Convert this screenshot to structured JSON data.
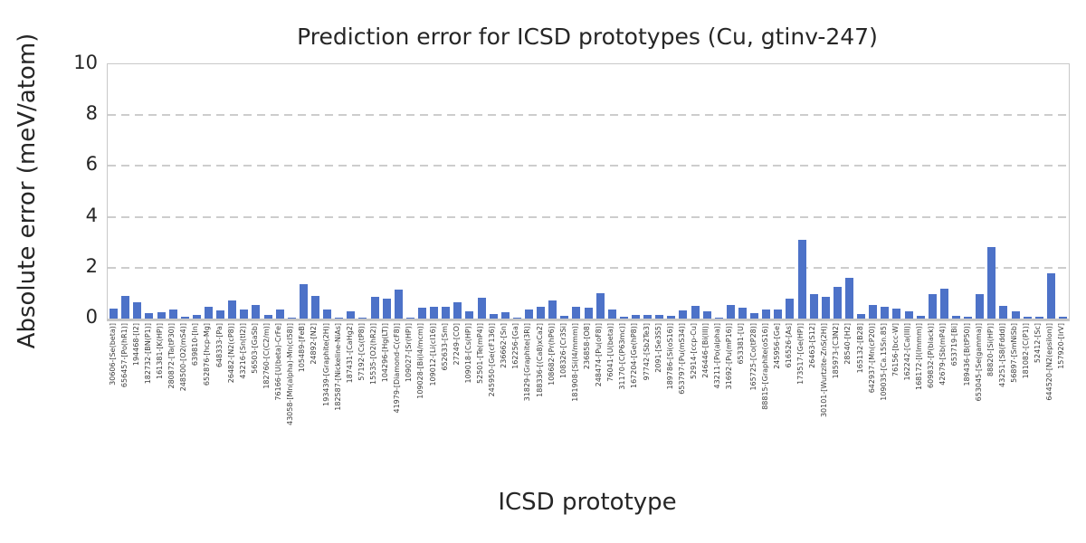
{
  "title": "Prediction error for ICSD prototypes (Cu, gtinv-247)",
  "colors": {
    "bar": "#4d72c8",
    "grid": "#cdcdcd",
    "spine": "#c9c9c9",
    "text": "#262626",
    "tick_text": "#3c3c3c"
  },
  "chart_data": {
    "type": "bar",
    "title": "Prediction error for ICSD prototypes (Cu, gtinv-247)",
    "xlabel": "ICSD prototype",
    "ylabel": "Absolute error (meV/atom)",
    "ylim": [
      0,
      10
    ],
    "yticks": [
      0,
      2,
      4,
      6,
      8,
      10
    ],
    "grid": "horizontal-dashed",
    "legend": "none",
    "bar_color": "#4d72c8",
    "categories": [
      "30606-[Se(beta)]",
      "656457-[Po(hR1)]",
      "194468-[I2]",
      "182732-[BN(P1)]",
      "161381-[K(HP)]",
      "280872-[Ta(tP30)]",
      "248500-[O2(mS4)]",
      "639810-[In]",
      "652876-[hcp-Mg]",
      "648333-[Pa]",
      "26482-[N2(cP8)]",
      "43216-[Sn(tI2)]",
      "56503-[GaSb]",
      "182760-[C(C2/m)]",
      "76166-[U(beta)-CrFe]",
      "43058-[Mn(alpha)-Mn(cI58)]",
      "105489-[FeB]",
      "24892-[N2]",
      "193439-[Graphite(2H)]",
      "182587-[Nickeline-NiAs]",
      "187431-[CaHg2]",
      "57192-[Cs(tP8)]",
      "15535-[O2(hR2)]",
      "104296-[Hg(LT)]",
      "41979-[Diamond-C(cF8)]",
      "109027-[Sr(HP)]",
      "109028-[Bi(I4/mcm)]",
      "109012-[Li(cI16)]",
      "652633-[Sm]",
      "27249-[CO]",
      "109018-[Cs(HP)]",
      "52501-[Te(mP4)]",
      "245950-[Ge(cF136)]",
      "236662-[Sn]",
      "162256-[Ga]",
      "31829-[Graphite(3R)]",
      "188336-[(Ca8)xCa2]",
      "108682-[Pr(hP6)]",
      "108326-[Cr3Si]",
      "181908-[Si(I4/mmm)]",
      "236858-[O8]",
      "248474-[Pu(oF8)]",
      "76041-[U(beta)]",
      "31170-[C(P63mc)]",
      "167204-[Ge(hP8)]",
      "97742-[Sb2Te3]",
      "2091-[Se3S5]",
      "189786-[Si(oS16)]",
      "653797-[Pu(mS34)]",
      "52914-[ccp-Cu]",
      "246446-[Bi(III)]",
      "43211-[Po(alpha)]",
      "31692-[Pu(mP16)]",
      "653381-[U]",
      "165725-[Co(tP28)]",
      "88815-[Graphite(oS16)]",
      "245956-[Ge]",
      "616526-[As]",
      "173517-[Ge(HP)]",
      "26463-[S12]",
      "30101-[Wurtzite-ZnS(2H)]",
      "185973-[C3N2]",
      "28540-[H2]",
      "165132-[B28]",
      "642937-[Mn(cP20)]",
      "109035-[Ca.15Sn.85]",
      "76156-[bcc-W]",
      "162242-[Ca(III)]",
      "168172-[I(Immm)]",
      "609832-[P(black)]",
      "42679-[Sb(mP4)]",
      "653719-[Bi]",
      "189436-[B(tP50)]",
      "653045-[Se(gamma)]",
      "88820-[Si(HP)]",
      "43251-[S8(Fddd)]",
      "56897-[SmNiSb]",
      "181082-[C(P1)]",
      "52412-[Sc]",
      "644520-[N2(epsilon)]",
      "157920-[IrV]"
    ],
    "values": [
      0.4,
      0.88,
      0.64,
      0.22,
      0.24,
      0.35,
      0.06,
      0.14,
      0.47,
      0.31,
      0.72,
      0.37,
      0.52,
      0.16,
      0.36,
      0.03,
      1.35,
      0.9,
      0.34,
      0.03,
      0.27,
      0.05,
      0.87,
      0.8,
      1.15,
      0.03,
      0.42,
      0.47,
      0.47,
      0.64,
      0.3,
      0.82,
      0.18,
      0.24,
      0.03,
      0.36,
      0.47,
      0.7,
      0.1,
      0.46,
      0.42,
      1.0,
      0.37,
      0.08,
      0.14,
      0.14,
      0.14,
      0.09,
      0.33,
      0.51,
      0.27,
      0.03,
      0.53,
      0.43,
      0.23,
      0.34,
      0.35,
      0.8,
      3.08,
      0.97,
      0.86,
      1.25,
      1.6,
      0.17,
      0.52,
      0.47,
      0.38,
      0.29,
      0.09,
      0.95,
      1.19,
      0.09,
      0.06,
      0.95,
      2.82,
      0.51,
      0.3,
      0.06,
      0.08,
      1.78,
      0.06
    ]
  }
}
